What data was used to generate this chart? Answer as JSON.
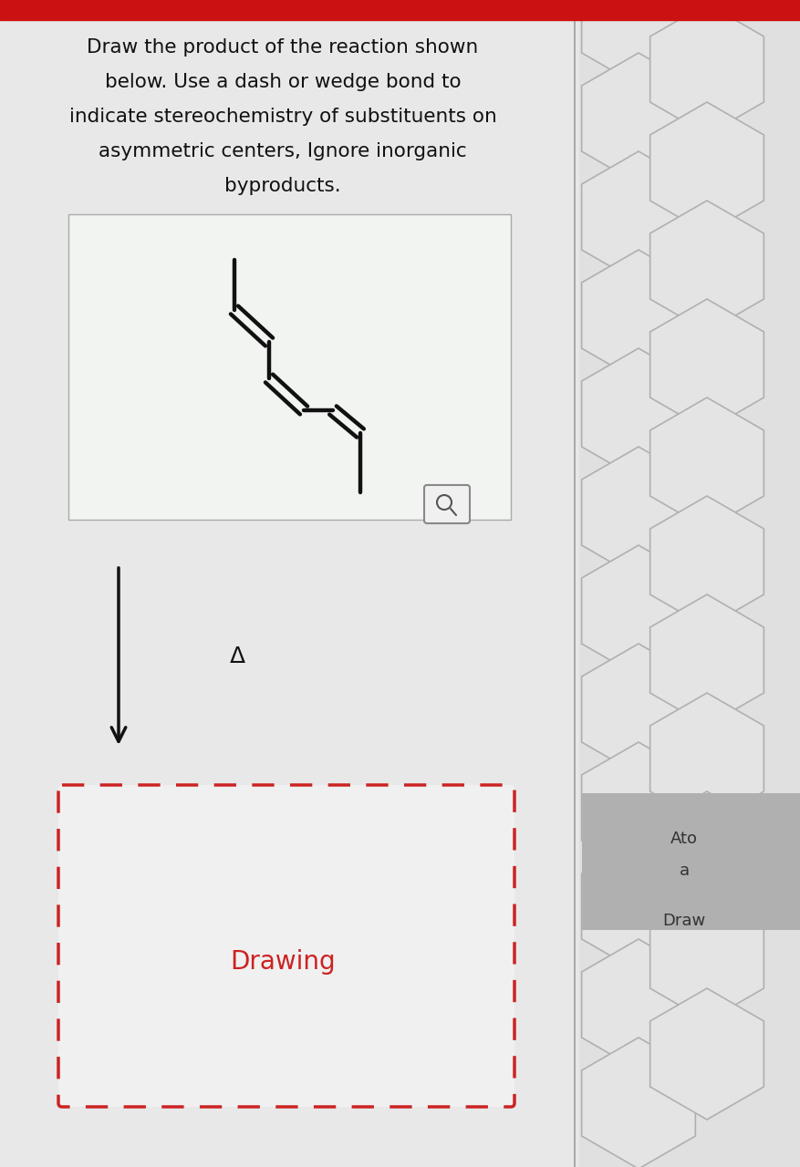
{
  "title_text": "Draw the product of the reaction shown\n     below. Use a dash or wedge bond to\nindicate stereochemistry of substituents on\n    asymmetric centers, Ignore inorganic\n                 byproducts.",
  "title_fontsize": 15.5,
  "bg_color": "#e8e8e8",
  "mol_bg": "#f0f2f0",
  "molecule_color": "#111111",
  "arrow_color": "#111111",
  "delta_label": "Δ",
  "drawing_label": "Drawing",
  "drawing_label_color": "#cc2222",
  "right_bg": "#d8d8d8",
  "hex_color": "#b8b8b8",
  "sidebar_lower_bg": "#aaaaaa",
  "sidebar_text1": "Ato\na",
  "sidebar_text2": "Draw"
}
